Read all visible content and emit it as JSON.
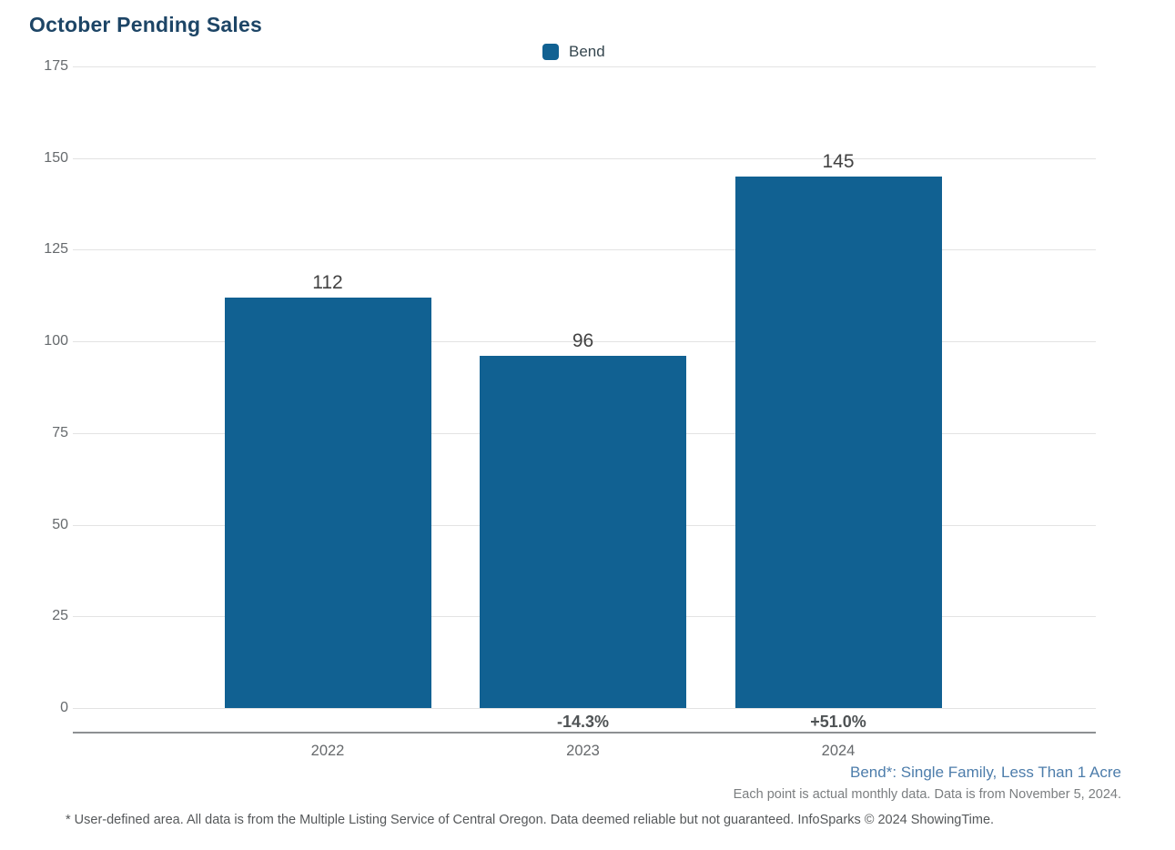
{
  "page": {
    "title": "October Pending Sales",
    "note_series_definition": "Bend*: Single Family, Less Than 1 Acre",
    "note_data_source": "Each point is actual monthly data. Data is from November 5, 2024.",
    "footer_disclaimer": "* User-defined area. All data is from the Multiple Listing Service of Central Oregon. Data deemed reliable but not guaranteed. InfoSparks © 2024 ShowingTime."
  },
  "legend": {
    "items": [
      {
        "label": "Bend",
        "color": "#116192"
      }
    ]
  },
  "colors": {
    "title": "#1d4566",
    "bar": "#116192",
    "gridline": "#e3e3e3",
    "axis_line": "#8d9093",
    "note_blue": "#4d7dab"
  },
  "chart_data": {
    "type": "bar",
    "title": "October Pending Sales",
    "categories": [
      "2022",
      "2023",
      "2024"
    ],
    "series": [
      {
        "name": "Bend",
        "color": "#116192",
        "values": [
          112,
          96,
          145
        ]
      }
    ],
    "value_labels": [
      "112",
      "96",
      "145"
    ],
    "pct_change_labels": [
      "",
      "-14.3%",
      "+51.0%"
    ],
    "xlabel": "",
    "ylabel": "",
    "ylim": [
      0,
      175
    ],
    "yticks": [
      0,
      25,
      50,
      75,
      100,
      125,
      150,
      175
    ],
    "grid": true,
    "legend_position": "top-center",
    "annotations": [
      "Bend*: Single Family, Less Than 1 Acre",
      "Each point is actual monthly data. Data is from November 5, 2024."
    ]
  }
}
